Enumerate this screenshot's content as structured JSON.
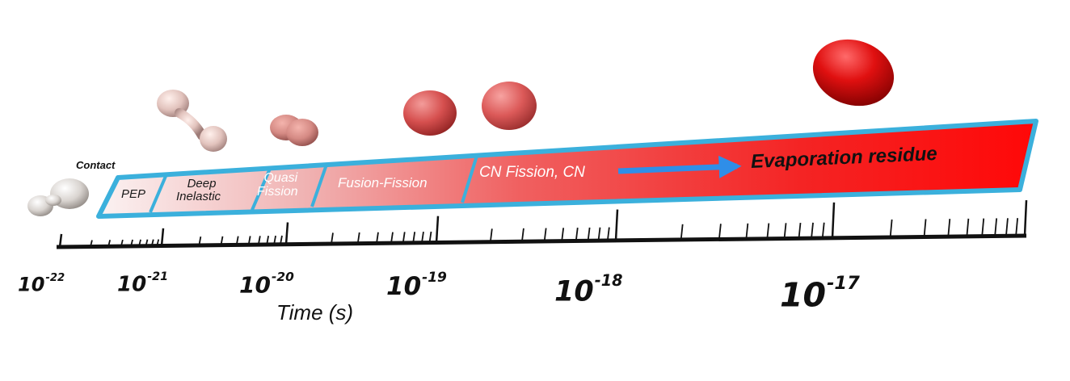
{
  "contact_label": "Contact",
  "bands": [
    {
      "id": "pep",
      "lines": [
        "PEP"
      ]
    },
    {
      "id": "deep",
      "lines": [
        "Deep",
        "Inelastic"
      ]
    },
    {
      "id": "quasi",
      "lines": [
        "Quasi",
        "Fission"
      ]
    },
    {
      "id": "fusion",
      "lines": [
        "Fusion-Fission"
      ]
    },
    {
      "id": "cn",
      "lines": [
        "CN Fission, CN"
      ]
    },
    {
      "id": "evap",
      "lines": [
        "Evaporation residue"
      ]
    }
  ],
  "axis": {
    "title": "Time (s)",
    "ticks": [
      {
        "base": "10",
        "exp": "-22"
      },
      {
        "base": "10",
        "exp": "-21"
      },
      {
        "base": "10",
        "exp": "-20"
      },
      {
        "base": "10",
        "exp": "-19"
      },
      {
        "base": "10",
        "exp": "-18"
      },
      {
        "base": "10",
        "exp": "-17"
      }
    ]
  },
  "colors": {
    "band_border": "#3bb0dc",
    "arrow": "#2f8ee8",
    "band_start": "#ffffff",
    "band_end": "#ff0a0a"
  }
}
